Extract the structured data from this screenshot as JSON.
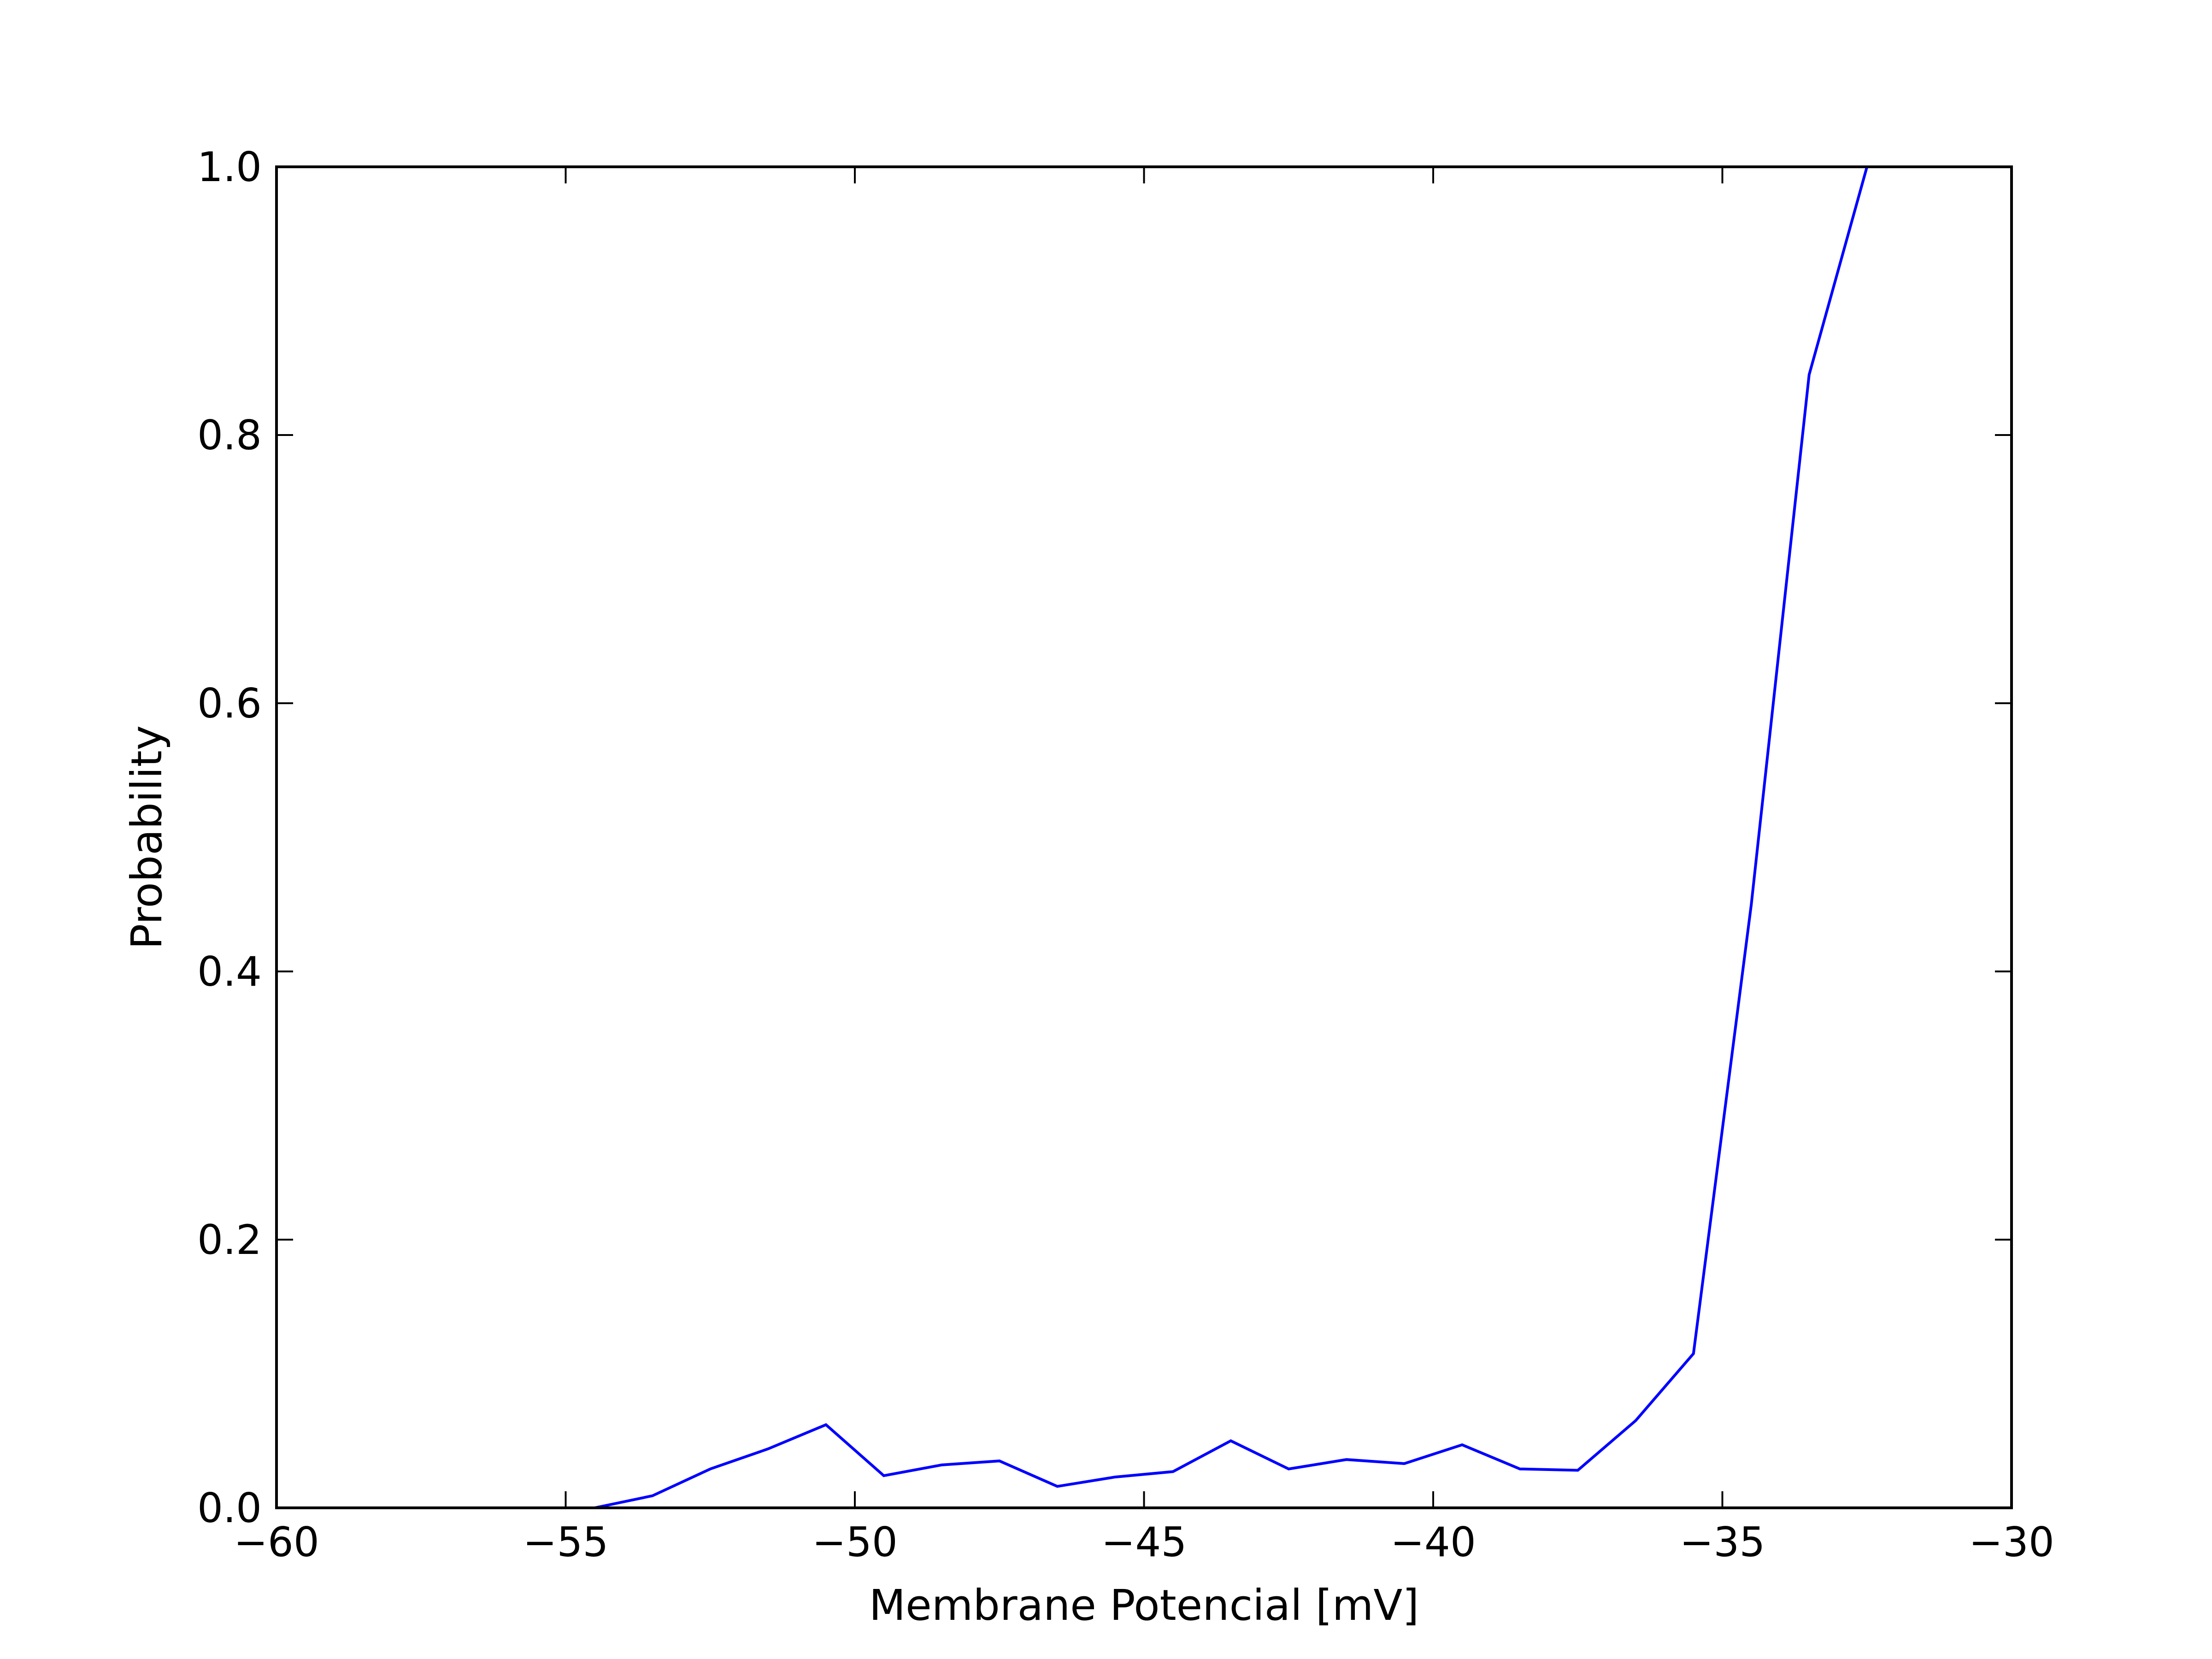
{
  "chart_data": {
    "type": "line",
    "title": "",
    "xlabel": "Membrane Potencial [mV]",
    "ylabel": "Probability",
    "xlim": [
      -60,
      -30
    ],
    "ylim": [
      0.0,
      1.0
    ],
    "xticks": [
      -60,
      -55,
      -50,
      -45,
      -40,
      -35,
      -30
    ],
    "xtick_labels": [
      "−60",
      "−55",
      "−50",
      "−45",
      "−40",
      "−35",
      "−30"
    ],
    "yticks": [
      0.0,
      0.2,
      0.4,
      0.6,
      0.8,
      1.0
    ],
    "ytick_labels": [
      "0.0",
      "0.2",
      "0.4",
      "0.6",
      "0.8",
      "1.0"
    ],
    "grid": false,
    "legend": "none",
    "series": [
      {
        "color": "#0000ff",
        "x": [
          -54.5,
          -53.5,
          -52.5,
          -51.5,
          -50.5,
          -49.5,
          -48.5,
          -47.5,
          -46.5,
          -45.5,
          -44.5,
          -43.5,
          -42.5,
          -41.5,
          -40.5,
          -39.5,
          -38.5,
          -37.5,
          -36.5,
          -35.5,
          -34.5,
          -33.5,
          -32.5
        ],
        "y": [
          0.0,
          0.009,
          0.029,
          0.044,
          0.062,
          0.024,
          0.032,
          0.035,
          0.016,
          0.023,
          0.027,
          0.05,
          0.029,
          0.036,
          0.033,
          0.047,
          0.029,
          0.028,
          0.065,
          0.115,
          0.45,
          0.845,
          1.0
        ]
      }
    ]
  }
}
